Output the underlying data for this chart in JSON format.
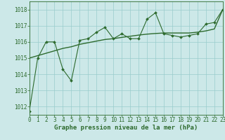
{
  "x": [
    0,
    1,
    2,
    3,
    4,
    5,
    6,
    7,
    8,
    9,
    10,
    11,
    12,
    13,
    14,
    15,
    16,
    17,
    18,
    19,
    20,
    21,
    22,
    23
  ],
  "y_main": [
    1011.7,
    1015.0,
    1016.0,
    1016.0,
    1014.3,
    1013.6,
    1016.1,
    1016.2,
    1016.6,
    1016.9,
    1016.2,
    1016.5,
    1016.2,
    1016.2,
    1017.4,
    1017.8,
    1016.5,
    1016.4,
    1016.3,
    1016.4,
    1016.5,
    1017.1,
    1017.2,
    1018.0
  ],
  "y_trend": [
    1015.0,
    1015.15,
    1015.3,
    1015.45,
    1015.6,
    1015.7,
    1015.85,
    1015.95,
    1016.05,
    1016.15,
    1016.2,
    1016.28,
    1016.35,
    1016.42,
    1016.48,
    1016.52,
    1016.55,
    1016.55,
    1016.55,
    1016.55,
    1016.6,
    1016.68,
    1016.8,
    1018.0
  ],
  "line_color": "#2d6a2d",
  "bg_color": "#cce8e8",
  "grid_color": "#99cccc",
  "ylim": [
    1011.5,
    1018.5
  ],
  "xlim": [
    0,
    23
  ],
  "yticks": [
    1012,
    1013,
    1014,
    1015,
    1016,
    1017,
    1018
  ],
  "xticks": [
    0,
    1,
    2,
    3,
    4,
    5,
    6,
    7,
    8,
    9,
    10,
    11,
    12,
    13,
    14,
    15,
    16,
    17,
    18,
    19,
    20,
    21,
    22,
    23
  ],
  "xlabel": "Graphe pression niveau de la mer (hPa)",
  "tick_fontsize": 5.5,
  "label_fontsize": 6.5
}
